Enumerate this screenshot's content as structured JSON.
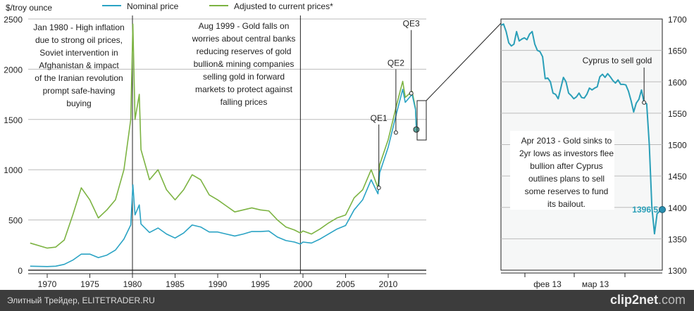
{
  "chart_data": [
    {
      "type": "line",
      "title": "",
      "ylabel": "$/troy ounce",
      "xlim": [
        1968,
        2014
      ],
      "ylim": [
        0,
        2500
      ],
      "yticks": [
        "0",
        "500",
        "1000",
        "1500",
        "2000",
        "2500"
      ],
      "xticks": [
        "1970",
        "1975",
        "1980",
        "1985",
        "1990",
        "1995",
        "2000",
        "2005",
        "2010"
      ],
      "legend": [
        "Nominal price",
        "Adjusted to current prices*"
      ],
      "legend_placement": "top",
      "colors": {
        "nominal": "#2aa3c4",
        "adjusted": "#7cb342"
      },
      "series": [
        {
          "name": "Nominal price",
          "x": [
            1968,
            1970,
            1971,
            1972,
            1973,
            1974,
            1975,
            1976,
            1977,
            1978,
            1979,
            1979.8,
            1980.05,
            1980.3,
            1980.8,
            1981,
            1982,
            1983,
            1984,
            1985,
            1986,
            1987,
            1988,
            1989,
            1990,
            1991,
            1992,
            1993,
            1994,
            1995,
            1996,
            1997,
            1998,
            1999,
            1999.7,
            2000,
            2001,
            2002,
            2003,
            2004,
            2005,
            2006,
            2007,
            2008,
            2008.8,
            2009,
            2010,
            2011,
            2011.7,
            2012,
            2012.8,
            2013.2,
            2013.3
          ],
          "y": [
            40,
            36,
            40,
            58,
            100,
            160,
            160,
            125,
            150,
            200,
            310,
            450,
            850,
            550,
            650,
            460,
            375,
            420,
            360,
            320,
            370,
            450,
            430,
            380,
            380,
            360,
            340,
            360,
            385,
            385,
            390,
            330,
            295,
            280,
            260,
            280,
            270,
            310,
            360,
            410,
            445,
            600,
            700,
            900,
            760,
            970,
            1225,
            1570,
            1800,
            1670,
            1750,
            1600,
            1400
          ]
        },
        {
          "name": "Adjusted to current prices*",
          "x": [
            1968,
            1970,
            1971,
            1972,
            1973,
            1974,
            1975,
            1976,
            1977,
            1978,
            1979,
            1979.8,
            1980.05,
            1980.3,
            1980.8,
            1981,
            1982,
            1983,
            1984,
            1985,
            1986,
            1987,
            1988,
            1989,
            1990,
            1991,
            1992,
            1993,
            1994,
            1995,
            1996,
            1997,
            1998,
            1999,
            1999.7,
            2000,
            2001,
            2002,
            2003,
            2004,
            2005,
            2006,
            2007,
            2008,
            2008.8,
            2009,
            2010,
            2011,
            2011.7,
            2012,
            2012.8,
            2013.2,
            2013.3
          ],
          "y": [
            270,
            220,
            230,
            300,
            550,
            820,
            700,
            520,
            600,
            700,
            1000,
            1500,
            2450,
            1500,
            1750,
            1200,
            900,
            1000,
            800,
            700,
            800,
            950,
            900,
            750,
            700,
            640,
            580,
            600,
            620,
            600,
            590,
            500,
            430,
            400,
            370,
            390,
            360,
            410,
            470,
            520,
            550,
            720,
            800,
            1000,
            820,
            1050,
            1300,
            1650,
            1880,
            1720,
            1780,
            1610,
            1400
          ]
        }
      ],
      "annotations": [
        {
          "x": 1980,
          "text": [
            "Jan 1980 - High inflation",
            "due to strong oil prices,",
            "Soviet intervention in",
            "Afghanistan & impact",
            "of the Iranian revolution",
            "prompt safe-having",
            "buying"
          ]
        },
        {
          "x": 1999.7,
          "text": [
            "Aug 1999 - Gold falls on",
            "worries about central banks",
            "reducing reserves of gold",
            "bullion& mining companies",
            "selling gold in forward",
            "markets to protect against",
            "falling prices"
          ]
        }
      ],
      "markers": [
        {
          "label": "QE1",
          "x": 2008.9,
          "y": 820
        },
        {
          "label": "QE2",
          "x": 2010.9,
          "y": 1370
        },
        {
          "label": "QE3",
          "x": 2012.7,
          "y": 1760
        }
      ]
    },
    {
      "type": "line",
      "ylim": [
        1300,
        1700
      ],
      "yticks": [
        "1300",
        "1350",
        "1400",
        "1450",
        "1500",
        "1550",
        "1600",
        "1650",
        "1700"
      ],
      "xticks": [
        "фев 13",
        "мар 13"
      ],
      "color": "#2a9fb8",
      "values": [
        1690,
        1692,
        1680,
        1662,
        1657,
        1660,
        1680,
        1665,
        1668,
        1670,
        1667,
        1676,
        1680,
        1660,
        1650,
        1648,
        1640,
        1605,
        1606,
        1600,
        1582,
        1580,
        1573,
        1590,
        1607,
        1600,
        1582,
        1578,
        1573,
        1576,
        1582,
        1575,
        1574,
        1580,
        1590,
        1587,
        1590,
        1592,
        1608,
        1612,
        1607,
        1613,
        1608,
        1602,
        1598,
        1603,
        1596,
        1596,
        1595,
        1585,
        1570,
        1552,
        1566,
        1572,
        1587,
        1567,
        1565,
        1500,
        1400,
        1358,
        1390,
        1394,
        1396.5
      ],
      "last_value_label": "1396,5",
      "annotations": [
        {
          "text": "Cyprus to sell gold",
          "index": 55
        },
        {
          "text": [
            "Apr 2013 - Gold sinks to",
            "2yr lows as investors flee",
            "bullion after Cyprus",
            "outlines plans to sell",
            "some reserves to fund",
            "its bailout."
          ]
        }
      ]
    }
  ],
  "footer": {
    "left": "Элитный Трейдер, ELITETRADER.RU",
    "brand": "clip2net",
    "brand_suffix": ".com"
  }
}
